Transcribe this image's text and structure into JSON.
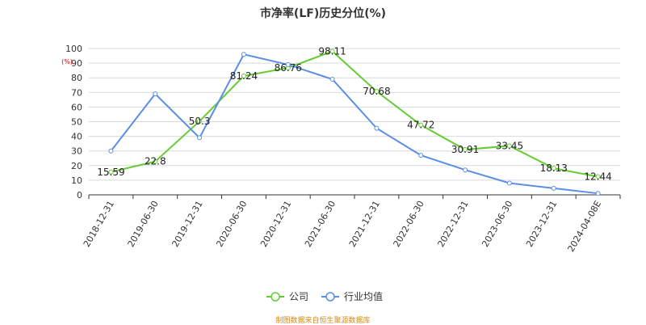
{
  "chart_data": {
    "type": "line",
    "title": "市净率(LF)历史分位(%)",
    "unit_label": "(%)",
    "categories": [
      "2018-12-31",
      "2019-06-30",
      "2019-12-31",
      "2020-06-30",
      "2020-12-31",
      "2021-06-30",
      "2021-12-31",
      "2022-06-30",
      "2022-12-31",
      "2023-06-30",
      "2023-12-31",
      "2024-04-08E"
    ],
    "ylim": [
      0,
      100
    ],
    "yticks": [
      0,
      10,
      20,
      30,
      40,
      50,
      60,
      70,
      80,
      90,
      100
    ],
    "grid": true,
    "legend_position": "bottom",
    "series": [
      {
        "name": "公司",
        "color": "#66cc33",
        "values": [
          15.59,
          22.8,
          50.3,
          81.24,
          86.76,
          98.11,
          70.68,
          47.72,
          30.91,
          33.45,
          18.13,
          12.44
        ],
        "labels": [
          "15.59",
          "22.8",
          "50.3",
          "81.24",
          "86.76",
          "98.11",
          "70.68",
          "47.72",
          "30.91",
          "33.45",
          "18.13",
          "12.44"
        ]
      },
      {
        "name": "行业均值",
        "color": "#5b8ee6",
        "values": [
          30,
          69,
          39,
          96,
          89,
          79,
          45.5,
          27,
          17,
          8,
          4.5,
          1
        ]
      }
    ]
  },
  "source_text": "制图数据来自恒生聚源数据库"
}
